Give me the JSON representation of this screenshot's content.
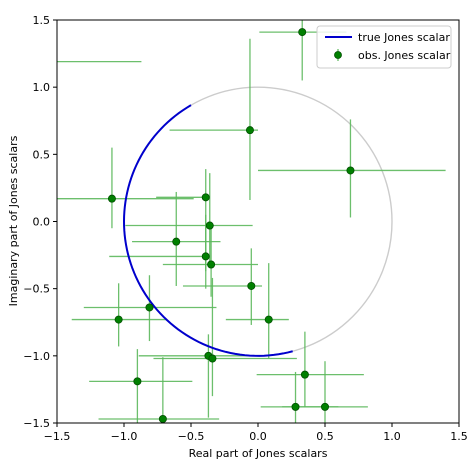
{
  "chart_data": {
    "type": "scatter",
    "xlabel": "Real part of Jones scalars",
    "ylabel": "Imaginary part of Jones scalars",
    "xlim": [
      -1.5,
      1.5
    ],
    "ylim": [
      -1.5,
      1.5
    ],
    "xticks": [
      "−1.5",
      "−1.0",
      "−0.5",
      "0.0",
      "0.5",
      "1.0",
      "1.5"
    ],
    "yticks": [
      "−1.5",
      "−1.0",
      "−0.5",
      "0.0",
      "0.5",
      "1.0",
      "1.5"
    ],
    "grid": false,
    "legend_position": "top-right",
    "unit_circle": {
      "center": [
        0,
        0
      ],
      "radius": 1.0,
      "color": "#cccccc"
    },
    "true_curve": {
      "name": "true Jones scalar",
      "color": "#0000cc",
      "theta_start_deg": 120,
      "theta_end_deg": 285
    },
    "observations": {
      "name": "obs. Jones scalar",
      "color": "#008000",
      "errorbar_color": "#5cb85c",
      "points": [
        {
          "x": 0.33,
          "y": 1.41,
          "xerr": [
            0.32,
            0.33
          ],
          "yerr": [
            0.36,
            0.43
          ]
        },
        {
          "x": -0.06,
          "y": 0.68,
          "xerr": [
            0.6,
            0.06
          ],
          "yerr": [
            0.52,
            0.68
          ]
        },
        {
          "x": 0.69,
          "y": 0.38,
          "xerr": [
            0.69,
            0.71
          ],
          "yerr": [
            0.35,
            0.38
          ]
        },
        {
          "x": -1.09,
          "y": 0.17,
          "xerr": [
            0.41,
            0.61
          ],
          "yerr": [
            0.22,
            0.38
          ]
        },
        {
          "x": -0.39,
          "y": 0.18,
          "xerr": [
            0.37,
            0.0
          ],
          "yerr": [
            0.55,
            0.21
          ]
        },
        {
          "x": -0.36,
          "y": -0.03,
          "xerr": [
            0.63,
            0.32
          ],
          "yerr": [
            0.27,
            0.39
          ]
        },
        {
          "x": -0.61,
          "y": -0.15,
          "xerr": [
            0.33,
            0.33
          ],
          "yerr": [
            0.33,
            0.37
          ]
        },
        {
          "x": -0.39,
          "y": -0.26,
          "xerr": [
            0.72,
            0.0
          ],
          "yerr": [
            0.24,
            0.31
          ]
        },
        {
          "x": -0.35,
          "y": -0.32,
          "xerr": [
            0.36,
            0.35
          ],
          "yerr": [
            0.24,
            0.31
          ]
        },
        {
          "x": -0.05,
          "y": -0.48,
          "xerr": [
            0.51,
            0.08
          ],
          "yerr": [
            0.29,
            0.28
          ]
        },
        {
          "x": -0.81,
          "y": -0.64,
          "xerr": [
            0.49,
            0.5
          ],
          "yerr": [
            0.25,
            0.24
          ]
        },
        {
          "x": -1.04,
          "y": -0.73,
          "xerr": [
            0.35,
            0.36
          ],
          "yerr": [
            0.2,
            0.27
          ]
        },
        {
          "x": 0.08,
          "y": -0.73,
          "xerr": [
            0.32,
            0.15
          ],
          "yerr": [
            0.29,
            0.42
          ]
        },
        {
          "x": -0.37,
          "y": -1.0,
          "xerr": [
            0.52,
            0.42
          ],
          "yerr": [
            0.46,
            0.16
          ]
        },
        {
          "x": -0.34,
          "y": -1.02,
          "xerr": [
            0.44,
            0.63
          ],
          "yerr": [
            0.28,
            0.6
          ]
        },
        {
          "x": -0.9,
          "y": -1.19,
          "xerr": [
            0.36,
            0.41
          ],
          "yerr": [
            0.33,
            0.24
          ]
        },
        {
          "x": 0.35,
          "y": -1.14,
          "xerr": [
            0.36,
            0.44
          ],
          "yerr": [
            0.24,
            0.32
          ]
        },
        {
          "x": 0.28,
          "y": -1.38,
          "xerr": [
            0.26,
            0.32
          ],
          "yerr": [
            0.12,
            0.26
          ]
        },
        {
          "x": 0.5,
          "y": -1.38,
          "xerr": [
            0.32,
            0.32
          ],
          "yerr": [
            0.12,
            0.34
          ]
        },
        {
          "x": -0.71,
          "y": -1.47,
          "xerr": [
            0.48,
            0.42
          ],
          "yerr": [
            0.03,
            0.46
          ]
        },
        {
          "x": -1.5,
          "y": 1.19,
          "xerr": [
            0.04,
            0.63
          ],
          "yerr": [
            0.0,
            0.0
          ]
        }
      ]
    }
  }
}
